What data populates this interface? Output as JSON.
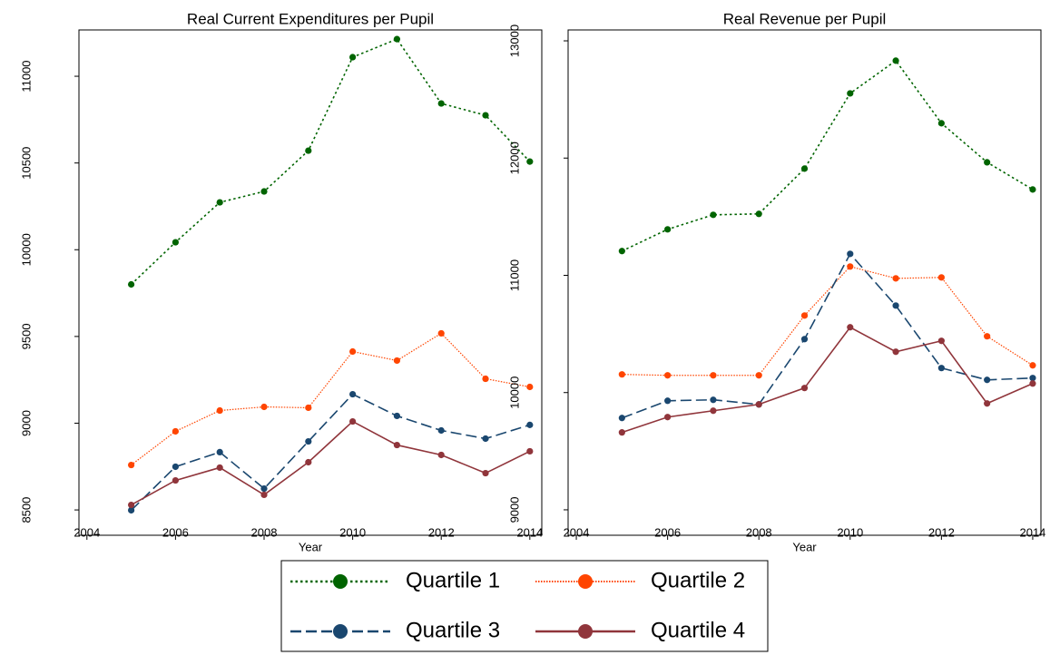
{
  "chart_data": [
    {
      "type": "line",
      "title": "Real Current Expenditures per Pupil",
      "x_label": "Year",
      "x": [
        2005,
        2006,
        2007,
        2008,
        2009,
        2010,
        2011,
        2012,
        2013,
        2014
      ],
      "xlim": [
        2003.82,
        2014.27
      ],
      "xticks": [
        2004,
        2006,
        2008,
        2010,
        2012,
        2014
      ],
      "ylim": [
        8354,
        11267
      ],
      "yticks": [
        8500,
        9000,
        9500,
        10000,
        10500,
        11000
      ],
      "legend": "bottom",
      "series": [
        {
          "name": "Quartile 1",
          "color": "#006400",
          "linestyle": "dotted",
          "values": [
            9800,
            10043,
            10273,
            10336,
            10571,
            11110,
            11214,
            10843,
            10775,
            10508
          ]
        },
        {
          "name": "Quartile 2",
          "color": "#ff4500",
          "linestyle": "fine-dotted",
          "values": [
            8759,
            8953,
            9073,
            9094,
            9089,
            9413,
            9361,
            9518,
            9256,
            9209
          ]
        },
        {
          "name": "Quartile 3",
          "color": "#1a476f",
          "linestyle": "dashed",
          "values": [
            8498,
            8749,
            8833,
            8623,
            8895,
            9167,
            9042,
            8958,
            8911,
            8990
          ]
        },
        {
          "name": "Quartile 4",
          "color": "#90353b",
          "linestyle": "solid",
          "values": [
            8529,
            8670,
            8744,
            8587,
            8775,
            9010,
            8874,
            8817,
            8712,
            8838
          ]
        }
      ]
    },
    {
      "type": "line",
      "title": "Real Revenue per Pupil",
      "x_label": "Year",
      "x": [
        2005,
        2006,
        2007,
        2008,
        2009,
        2010,
        2011,
        2012,
        2013,
        2014
      ],
      "xlim": [
        2003.82,
        2014.18
      ],
      "xticks": [
        2004,
        2006,
        2008,
        2010,
        2012,
        2014
      ],
      "ylim": [
        8783,
        13093
      ],
      "yticks": [
        9000,
        10000,
        11000,
        12000,
        13000
      ],
      "series": [
        {
          "color": "#006400",
          "linestyle": "dotted",
          "values": [
            11207,
            11392,
            11516,
            11524,
            11910,
            12552,
            12831,
            12297,
            11964,
            11732
          ]
        },
        {
          "color": "#ff4500",
          "linestyle": "fine-dotted",
          "values": [
            10155,
            10147,
            10147,
            10147,
            10657,
            11075,
            10974,
            10982,
            10480,
            10232
          ]
        },
        {
          "color": "#1a476f",
          "linestyle": "dashed",
          "values": [
            9783,
            9930,
            9938,
            9899,
            10456,
            11183,
            10742,
            10209,
            10108,
            10124
          ]
        },
        {
          "color": "#90353b",
          "linestyle": "solid",
          "values": [
            9660,
            9791,
            9845,
            9899,
            10039,
            10557,
            10348,
            10441,
            9907,
            10077
          ]
        }
      ]
    }
  ]
}
